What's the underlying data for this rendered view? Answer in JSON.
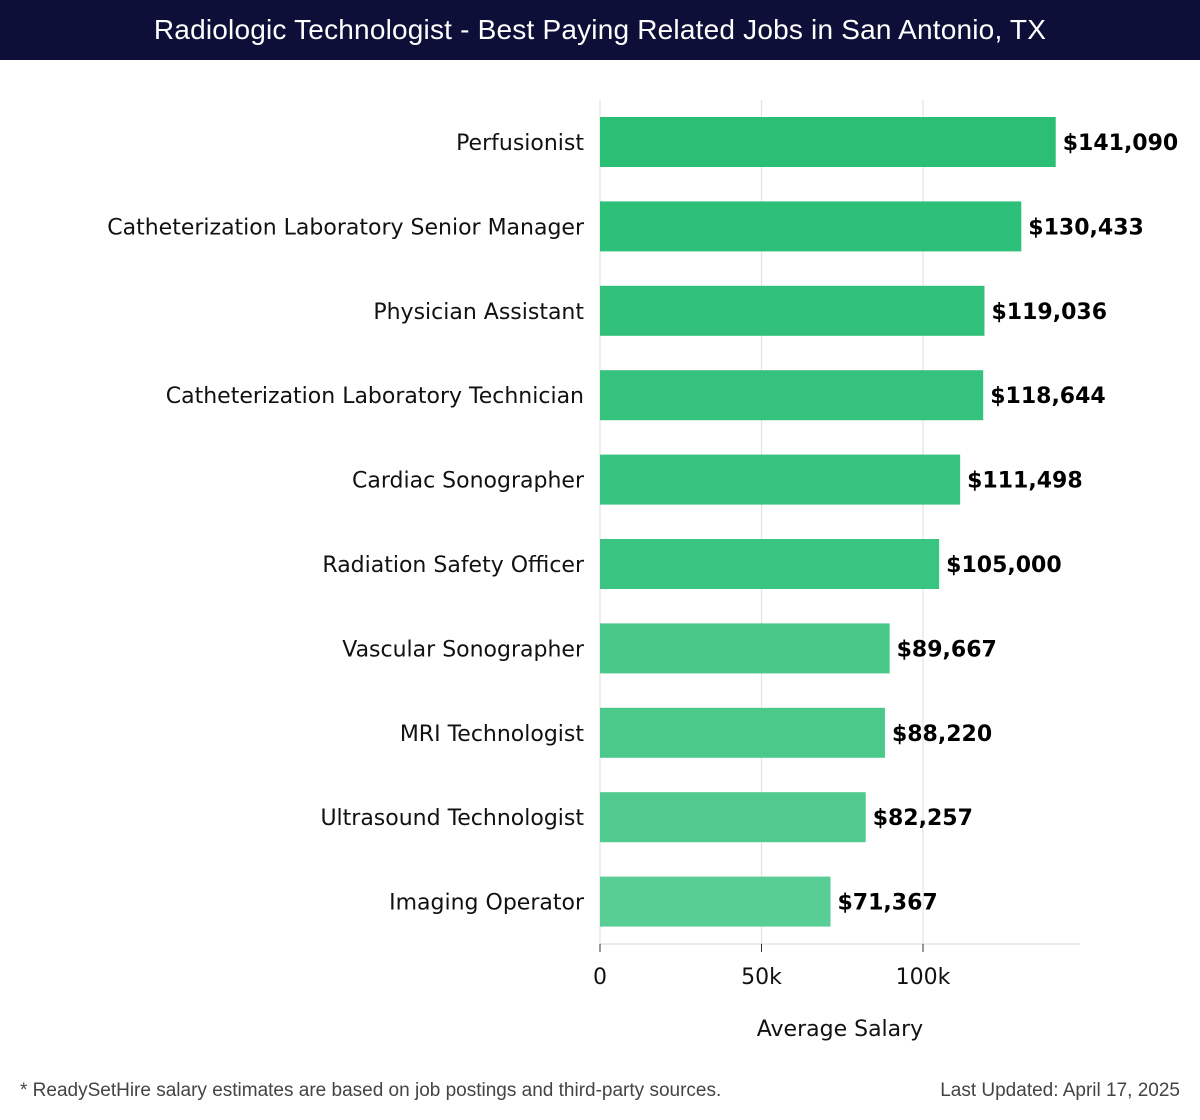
{
  "header": {
    "title": "Radiologic Technologist - Best Paying Related Jobs in San Antonio, TX"
  },
  "chart_data": {
    "type": "bar",
    "orientation": "horizontal",
    "categories": [
      "Perfusionist",
      "Catheterization Laboratory Senior Manager",
      "Physician Assistant",
      "Catheterization Laboratory Technician",
      "Cardiac Sonographer",
      "Radiation Safety Officer",
      "Vascular Sonographer",
      "MRI Technologist",
      "Ultrasound Technologist",
      "Imaging Operator"
    ],
    "values": [
      141090,
      130433,
      119036,
      118644,
      111498,
      105000,
      89667,
      88220,
      82257,
      71367
    ],
    "value_labels": [
      "$141,090",
      "$130,433",
      "$119,036",
      "$118,644",
      "$111,498",
      "$105,000",
      "$89,667",
      "$88,220",
      "$82,257",
      "$71,367"
    ],
    "xlabel": "Average Salary",
    "ylabel": "",
    "xlim": [
      0,
      148000
    ],
    "x_ticks": [
      0,
      50000,
      100000
    ],
    "x_tick_labels": [
      "0",
      "50k",
      "100k"
    ],
    "grid": "vertical",
    "bar_colors": [
      "#2bbf76",
      "#2dc078",
      "#31c17b",
      "#34c27d",
      "#37c380",
      "#3ac482",
      "#48c889",
      "#4bc98b",
      "#50ca8f",
      "#58cd94"
    ]
  },
  "footer": {
    "note": "* ReadySetHire salary estimates are based on job postings and third-party sources.",
    "updated": "Last Updated: April 17, 2025"
  }
}
